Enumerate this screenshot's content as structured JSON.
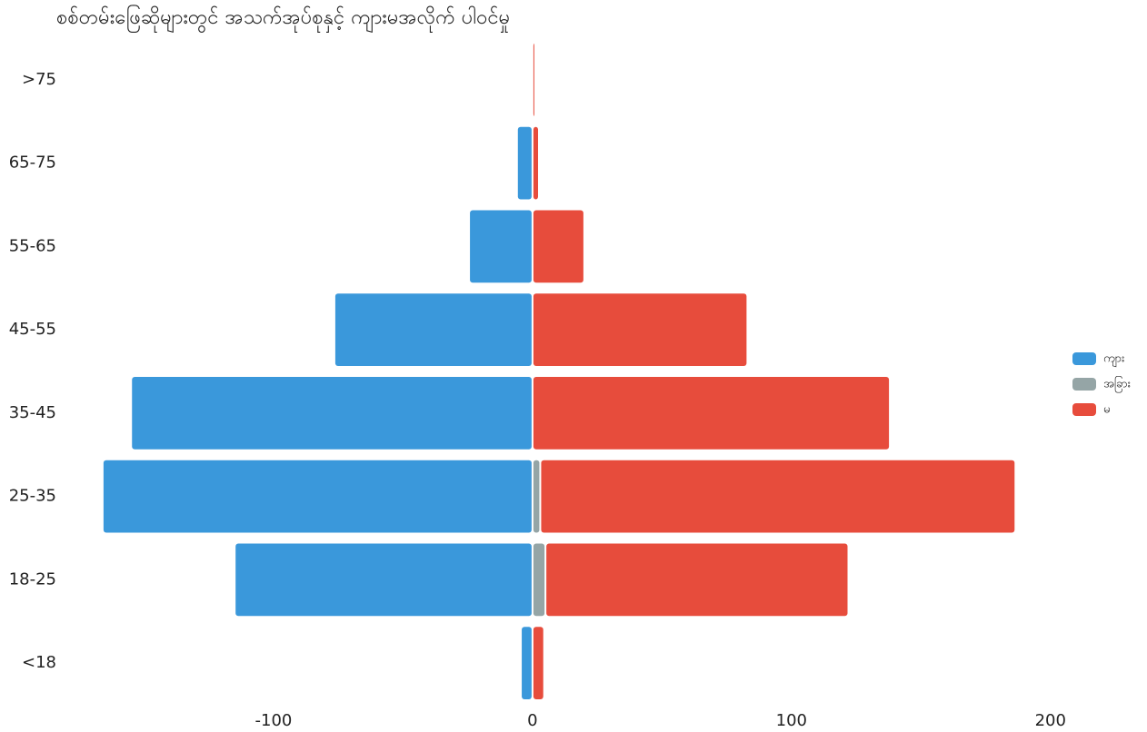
{
  "chart_data": {
    "type": "pyramid",
    "title": "စစ်တမ်းဖြေဆိုများတွင် အသက်အုပ်စုနှင့် ကျားမအလိုက် ပါဝင်မှု",
    "categories": [
      ">75",
      "65-75",
      "55-65",
      "45-55",
      "35-45",
      "25-35",
      "18-25",
      "<18"
    ],
    "series": [
      {
        "name": "ကျား",
        "color": "#3a98db",
        "values": [
          0,
          -6,
          -24.5,
          -76.5,
          -155,
          -166,
          -115,
          -4.5
        ]
      },
      {
        "name": "အခြား",
        "color": "#95a5a6",
        "values": [
          0,
          0,
          0,
          0,
          0,
          3,
          5,
          0
        ]
      },
      {
        "name": "မ",
        "color": "#e74c3c",
        "values": [
          0.5,
          2.5,
          20,
          83,
          138,
          183.5,
          117,
          4.5
        ]
      }
    ],
    "xlim": [
      -170,
      205
    ],
    "xticks": [
      -100,
      0,
      100,
      200
    ],
    "legend": "right"
  }
}
